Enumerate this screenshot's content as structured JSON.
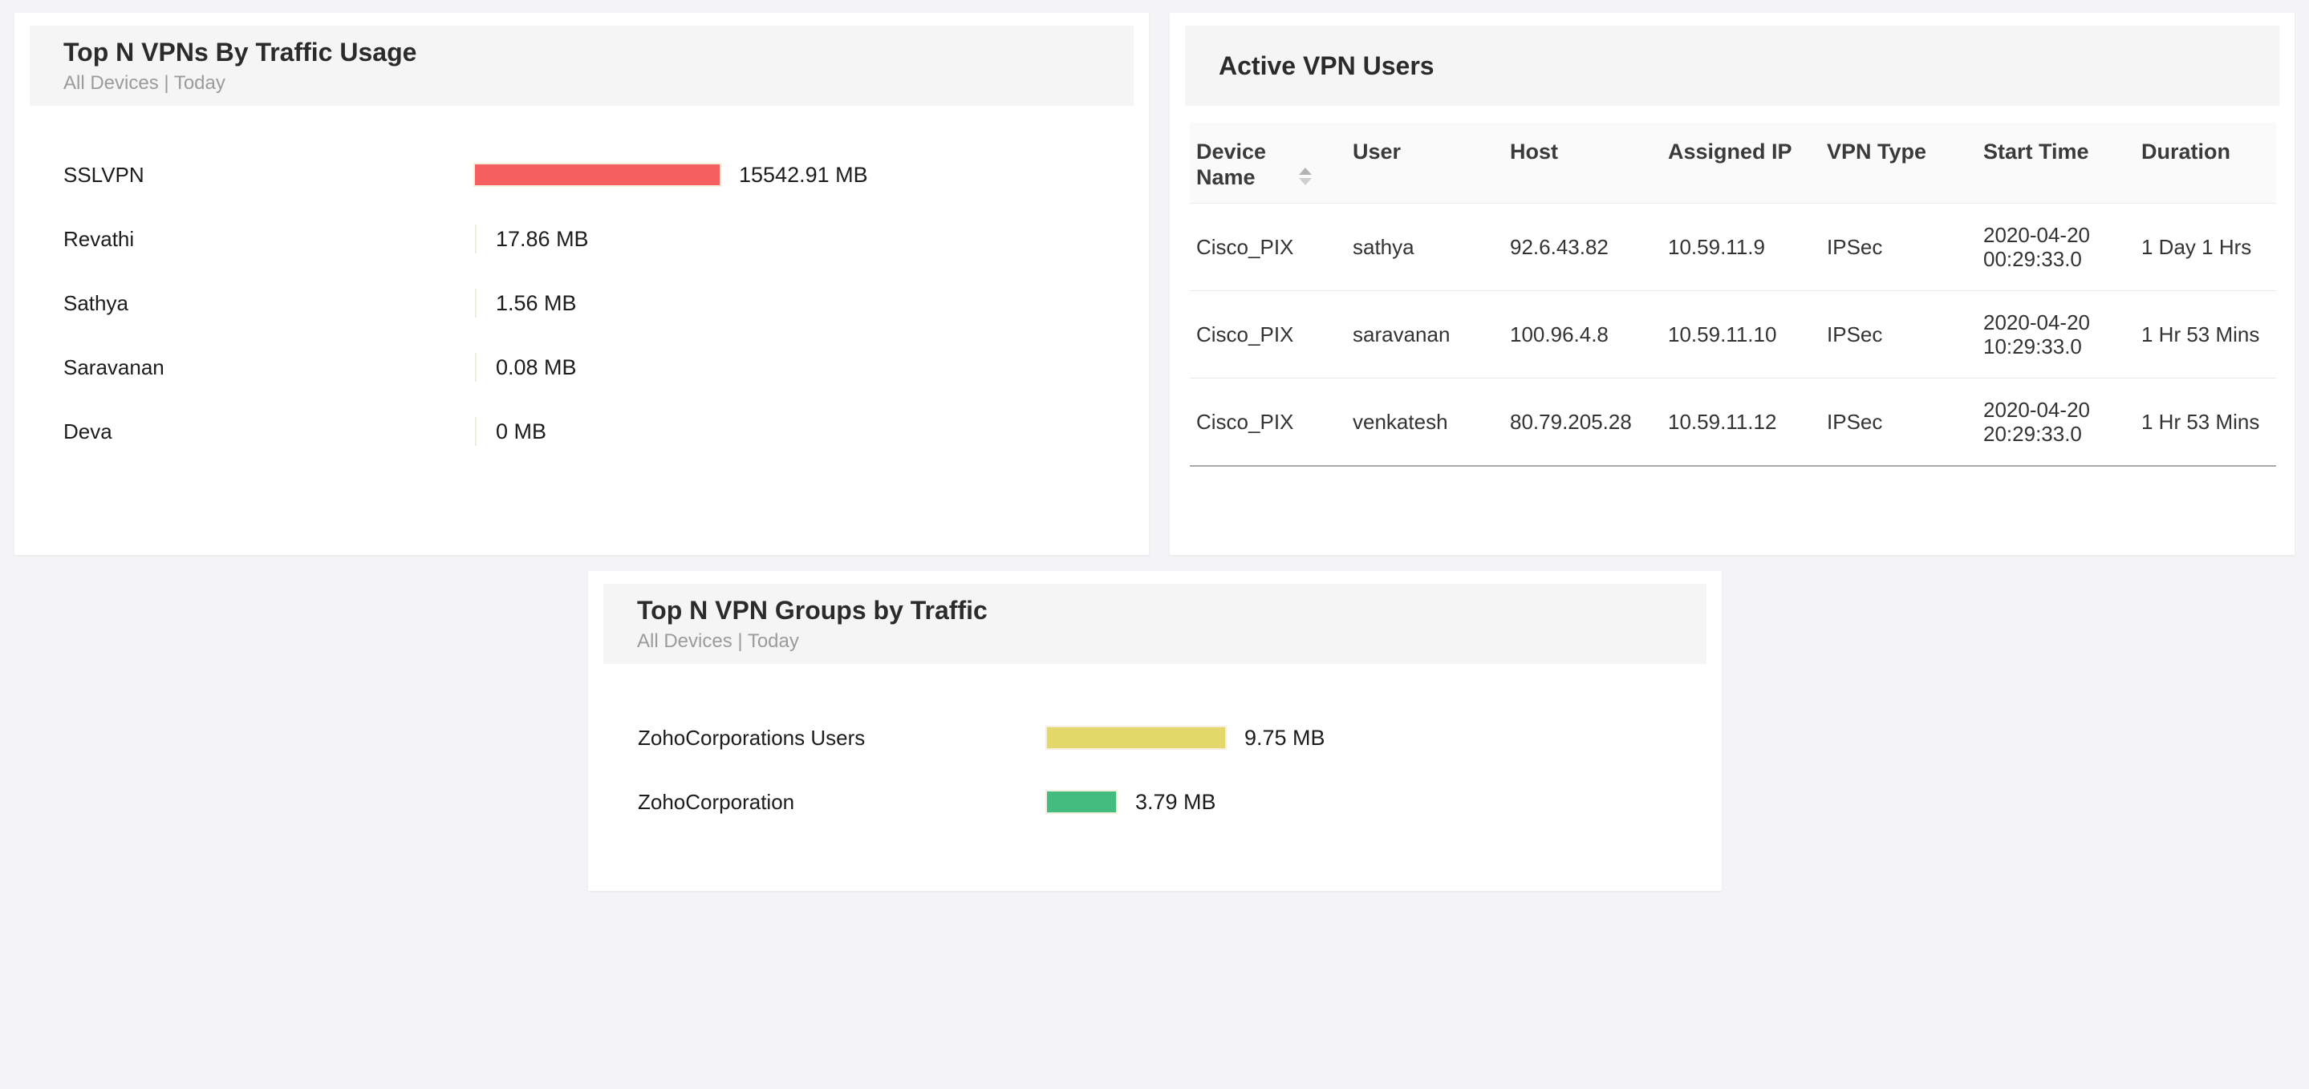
{
  "widgets": {
    "top_vpns": {
      "title": "Top N VPNs By Traffic Usage",
      "subtitle": "All Devices | Today",
      "chart_data": {
        "type": "bar",
        "orientation": "horizontal",
        "title": "Top N VPNs By Traffic Usage",
        "unit": "MB",
        "categories": [
          "SSLVPN",
          "Revathi",
          "Sathya",
          "Saravanan",
          "Deva"
        ],
        "values": [
          15542.91,
          17.86,
          1.56,
          0.08,
          0
        ],
        "value_labels": [
          "15542.91 MB",
          "17.86 MB",
          "1.56 MB",
          "0.08 MB",
          "0 MB"
        ],
        "bar_color": "#f65f5f",
        "zero_tick_color": "#f2edda",
        "grid": "off",
        "legend": "none"
      }
    },
    "active_users": {
      "title": "Active VPN Users",
      "columns": [
        "Device Name",
        "User",
        "Host",
        "Assigned IP",
        "VPN Type",
        "Start Time",
        "Duration"
      ],
      "sorted_column": "Device Name",
      "rows": [
        {
          "device": "Cisco_PIX",
          "user": "sathya",
          "host": "92.6.43.82",
          "assigned_ip": "10.59.11.9",
          "vpn_type": "IPSec",
          "start_time": "2020-04-20 00:29:33.0",
          "duration": "1 Day 1 Hrs"
        },
        {
          "device": "Cisco_PIX",
          "user": "saravanan",
          "host": "100.96.4.8",
          "assigned_ip": "10.59.11.10",
          "vpn_type": "IPSec",
          "start_time": "2020-04-20 10:29:33.0",
          "duration": "1 Hr 53 Mins"
        },
        {
          "device": "Cisco_PIX",
          "user": "venkatesh",
          "host": "80.79.205.28",
          "assigned_ip": "10.59.11.12",
          "vpn_type": "IPSec",
          "start_time": "2020-04-20 20:29:33.0",
          "duration": "1 Hr 53 Mins"
        }
      ]
    },
    "vpn_groups": {
      "title": "Top N VPN Groups by Traffic",
      "subtitle": "All Devices | Today",
      "chart_data": {
        "type": "bar",
        "orientation": "horizontal",
        "title": "Top N VPN Groups by Traffic",
        "unit": "MB",
        "categories": [
          "ZohoCorporations Users",
          "ZohoCorporation"
        ],
        "values": [
          9.75,
          3.79
        ],
        "value_labels": [
          "9.75 MB",
          "3.79 MB"
        ],
        "colors": [
          "#e2d96a",
          "#45bc7f"
        ],
        "zero_tick_color": "#f2edda",
        "grid": "off",
        "legend": "none"
      }
    }
  },
  "theme": {
    "page_bg": "#f4f4f6",
    "card_bg": "#ffffff",
    "header_strip_bg": "#f5f5f5",
    "table_header_bg": "#fafafa",
    "row_divider": "#eaeaea",
    "table_bottom_border": "#a9a9a9"
  }
}
